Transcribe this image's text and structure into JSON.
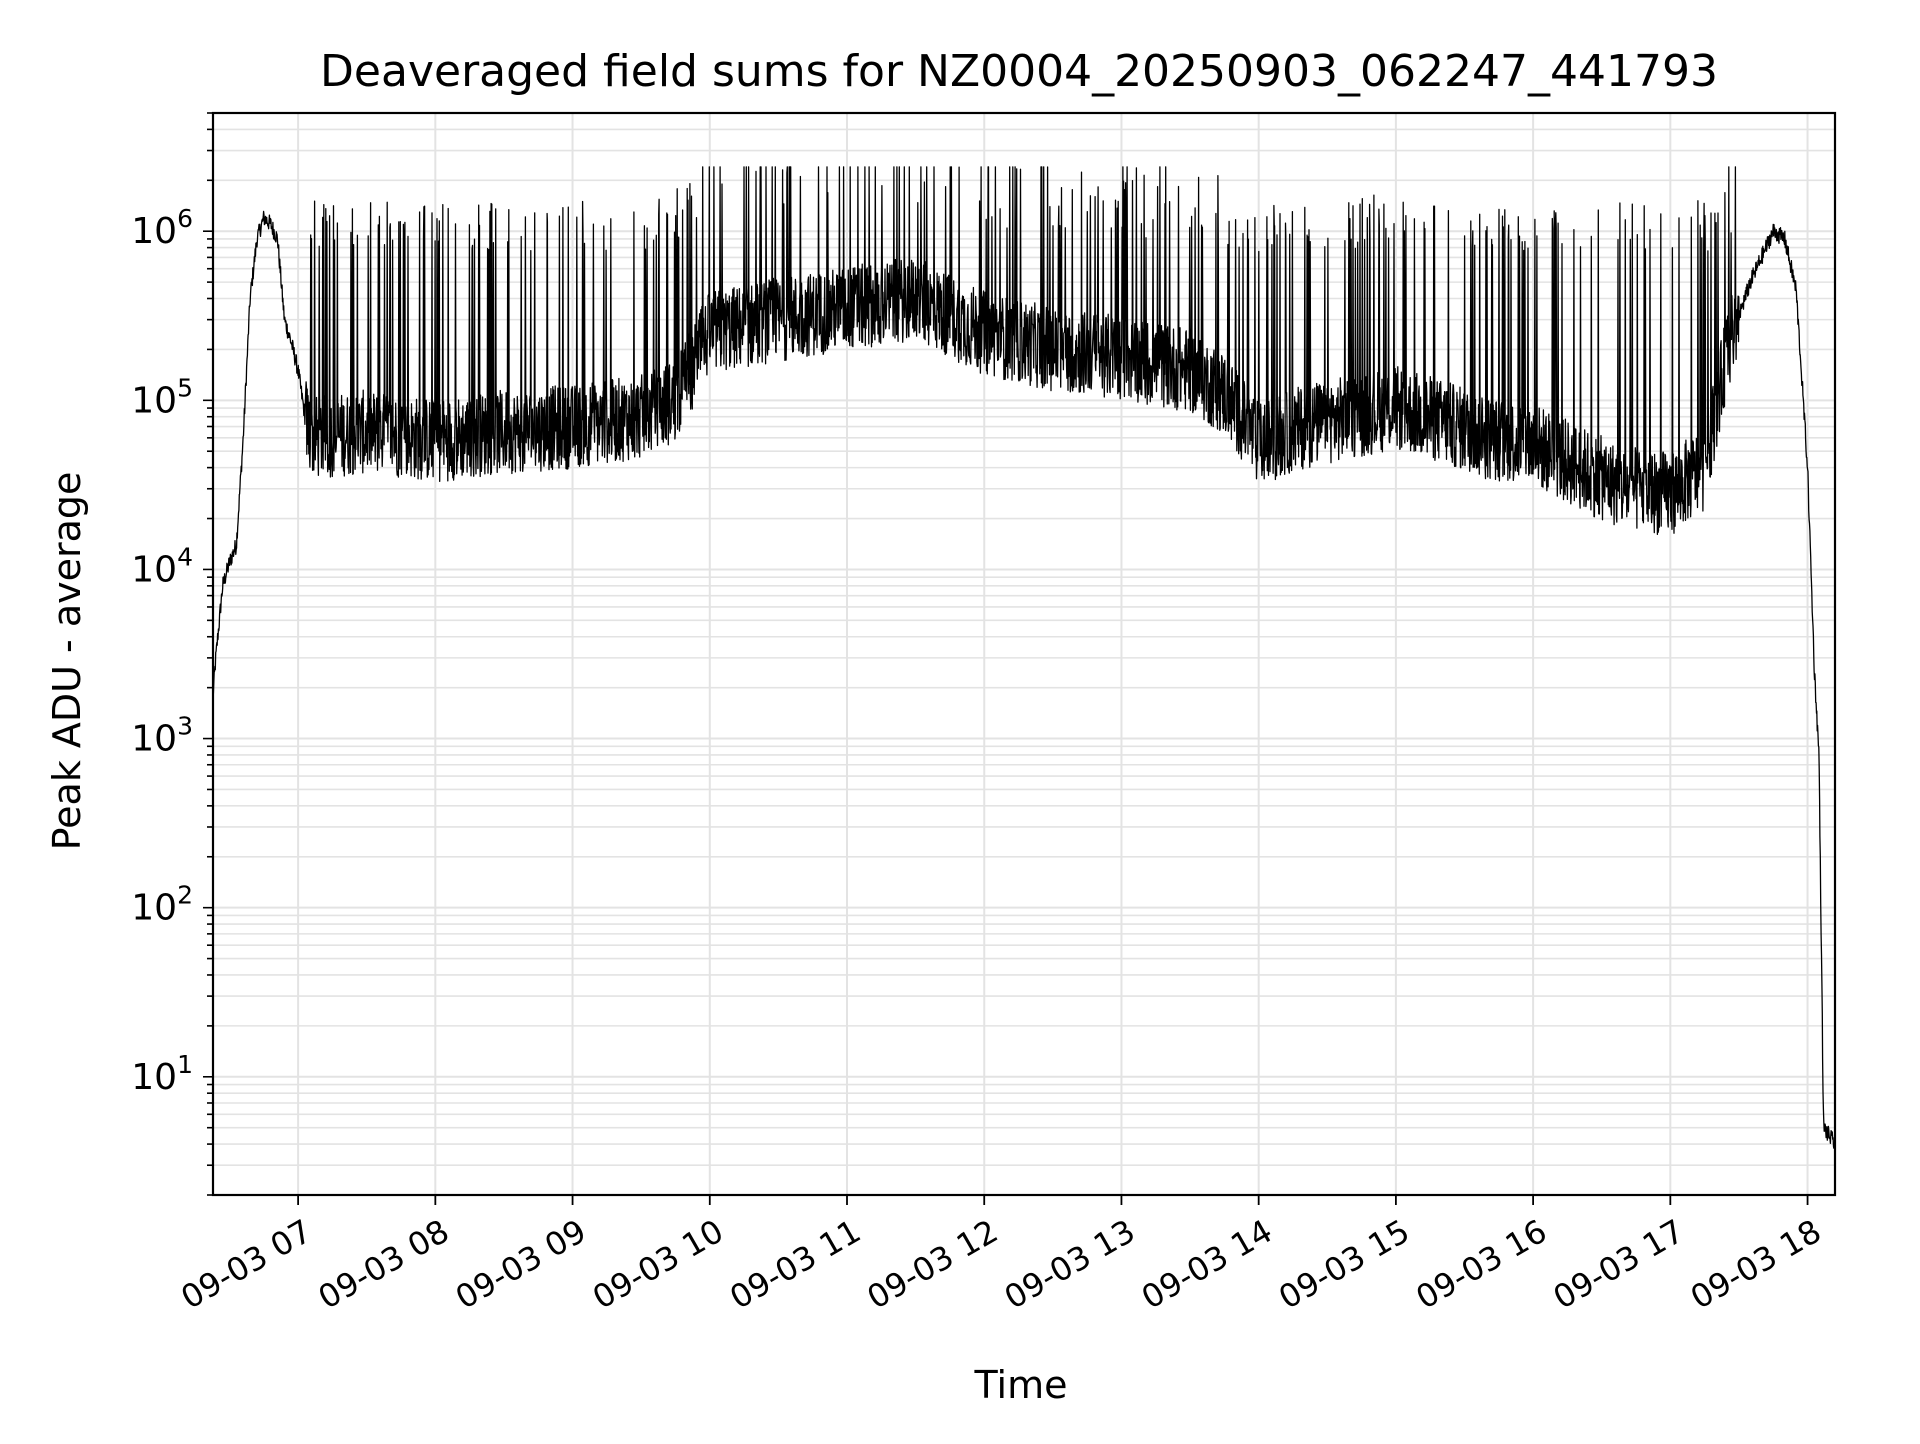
{
  "chart_data": {
    "type": "line",
    "title": "Deaveraged field sums for NZ0004_20250903_062247_441793",
    "xlabel": "Time",
    "ylabel": "Peak ADU - average",
    "xscale": "time",
    "yscale": "log",
    "xlim": [
      "2025-09-03 06:22:47",
      "2025-09-03 18:12:00"
    ],
    "ylim": [
      2,
      5000000
    ],
    "grid": true,
    "legend": "none",
    "line_color": "#000000",
    "x_ticks": [
      "09-03 07",
      "09-03 08",
      "09-03 09",
      "09-03 10",
      "09-03 11",
      "09-03 12",
      "09-03 13",
      "09-03 14",
      "09-03 15",
      "09-03 16",
      "09-03 17",
      "09-03 18"
    ],
    "y_ticks": [
      {
        "value": 10,
        "base": "10",
        "exp": "1"
      },
      {
        "value": 100,
        "base": "10",
        "exp": "2"
      },
      {
        "value": 1000,
        "base": "10",
        "exp": "3"
      },
      {
        "value": 10000,
        "base": "10",
        "exp": "4"
      },
      {
        "value": 100000,
        "base": "10",
        "exp": "5"
      },
      {
        "value": 1000000,
        "base": "10",
        "exp": "6"
      }
    ],
    "envelope": {
      "description_of_series": "Peak ADU - average per frame; values sampled from the plotted curve",
      "baseline": [
        [
          "06:22:47",
          1800
        ],
        [
          "06:24",
          3000
        ],
        [
          "06:27",
          8000
        ],
        [
          "06:30",
          11000
        ],
        [
          "06:33",
          14000
        ],
        [
          "06:36",
          60000
        ],
        [
          "06:39",
          400000
        ],
        [
          "06:42",
          900000
        ],
        [
          "06:45",
          1200000
        ],
        [
          "06:48",
          1100000
        ],
        [
          "06:51",
          900000
        ],
        [
          "06:54",
          300000
        ],
        [
          "06:57",
          220000
        ],
        [
          "07:00",
          150000
        ],
        [
          "07:03",
          80000
        ],
        [
          "07:06",
          60000
        ],
        [
          "07:30",
          65000
        ],
        [
          "08:00",
          58000
        ],
        [
          "08:30",
          65000
        ],
        [
          "09:00",
          70000
        ],
        [
          "09:30",
          80000
        ],
        [
          "09:45",
          100000
        ],
        [
          "10:00",
          250000
        ],
        [
          "10:30",
          300000
        ],
        [
          "11:00",
          350000
        ],
        [
          "11:30",
          400000
        ],
        [
          "12:00",
          250000
        ],
        [
          "12:30",
          200000
        ],
        [
          "13:00",
          180000
        ],
        [
          "13:30",
          150000
        ],
        [
          "13:45",
          110000
        ],
        [
          "14:00",
          55000
        ],
        [
          "14:20",
          70000
        ],
        [
          "14:40",
          80000
        ],
        [
          "15:00",
          90000
        ],
        [
          "15:20",
          75000
        ],
        [
          "15:40",
          60000
        ],
        [
          "16:00",
          55000
        ],
        [
          "16:20",
          40000
        ],
        [
          "16:40",
          30000
        ],
        [
          "17:00",
          28000
        ],
        [
          "17:15",
          40000
        ],
        [
          "17:25",
          200000
        ],
        [
          "17:35",
          500000
        ],
        [
          "17:45",
          1000000
        ],
        [
          "17:50",
          900000
        ],
        [
          "17:55",
          450000
        ],
        [
          "18:00",
          40000
        ],
        [
          "18:03",
          2500
        ],
        [
          "18:05",
          800
        ],
        [
          "18:07",
          5
        ],
        [
          "18:12",
          4
        ]
      ],
      "spike_peak": 2400000
    }
  }
}
